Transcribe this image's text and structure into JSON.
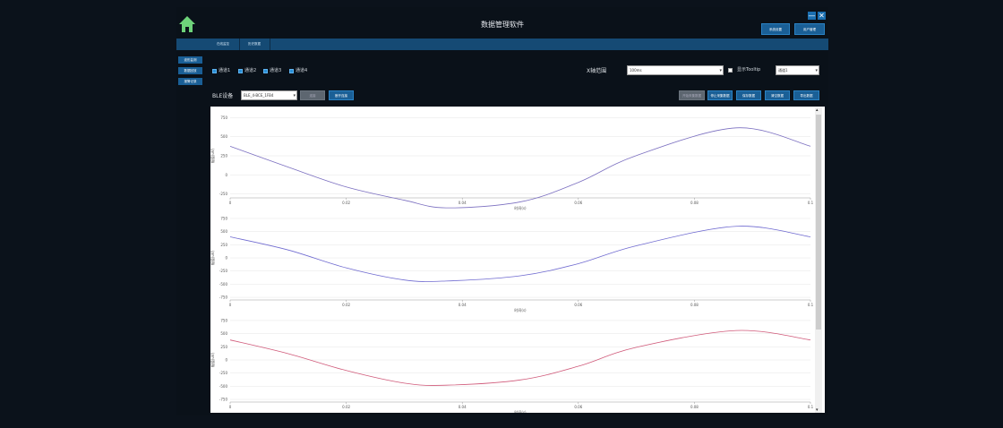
{
  "app": {
    "title": "数据管理软件",
    "home_icon": "home-icon",
    "minimize_label": "—",
    "close_label": "✕",
    "top_buttons": [
      "系统设置",
      "用户管理"
    ]
  },
  "tabs": [
    {
      "label": "在线监控"
    },
    {
      "label": "历史数据"
    }
  ],
  "sidebar": {
    "items": [
      {
        "label": "波形监测"
      },
      {
        "label": "数据回放"
      },
      {
        "label": "报警记录"
      }
    ]
  },
  "channels": [
    {
      "label": "通道1",
      "checked": true
    },
    {
      "label": "通道2",
      "checked": true
    },
    {
      "label": "通道3",
      "checked": true
    },
    {
      "label": "通道4",
      "checked": true
    }
  ],
  "xaxis_range": {
    "label": "X轴范围",
    "value": "100ms"
  },
  "tooltip_toggle": {
    "label": "显示Tooltip",
    "checked": false,
    "channel_value": "通道1"
  },
  "device": {
    "label": "BLE设备",
    "value": "BLE_4-BCE_1FB4",
    "connect_label": "连接",
    "disconnect_label": "断开连接"
  },
  "toolbar": {
    "buttons": [
      {
        "label": "开始采集数据",
        "disabled": true
      },
      {
        "label": "停止采集数据",
        "disabled": false
      },
      {
        "label": "保存数据",
        "disabled": false
      },
      {
        "label": "清空数据",
        "disabled": false
      },
      {
        "label": "导出数据",
        "disabled": false
      }
    ]
  },
  "chart_data": [
    {
      "type": "line",
      "xlabel": "时间(s)",
      "ylabel": "幅值(uV)",
      "xlim": [
        0,
        0.1
      ],
      "ylim": [
        -300,
        800
      ],
      "x_ticks": [
        "0",
        "0.02",
        "0.04",
        "0.06",
        "0.08",
        "0.1"
      ],
      "y_ticks": [
        "750",
        "500",
        "250",
        "0",
        "-250"
      ],
      "color": "#7b6fc0",
      "series": [
        {
          "x": [
            0,
            0.01,
            0.02,
            0.03,
            0.0372,
            0.05,
            0.06,
            0.07,
            0.0872,
            0.1
          ],
          "values": [
            375,
            102,
            -157,
            -330,
            -430,
            -352,
            -98,
            253,
            615,
            375
          ]
        }
      ]
    },
    {
      "type": "line",
      "xlabel": "时间(s)",
      "ylabel": "幅值(uV)",
      "xlim": [
        0,
        0.1
      ],
      "ylim": [
        -800,
        800
      ],
      "x_ticks": [
        "0",
        "0.02",
        "0.04",
        "0.06",
        "0.08",
        "0.1"
      ],
      "y_ticks": [
        "750",
        "500",
        "250",
        "0",
        "-250",
        "-500",
        "-750"
      ],
      "color": "#6f6ad0",
      "series": [
        {
          "x": [
            0,
            0.01,
            0.02,
            0.03,
            0.0372,
            0.05,
            0.06,
            0.07,
            0.0872,
            0.1
          ],
          "values": [
            400,
            150,
            -190,
            -420,
            -440,
            -340,
            -110,
            230,
            600,
            400
          ]
        }
      ]
    },
    {
      "type": "line",
      "xlabel": "时间(s)",
      "ylabel": "幅值(uV)",
      "xlim": [
        0,
        0.1
      ],
      "ylim": [
        -800,
        800
      ],
      "x_ticks": [
        "0",
        "0.02",
        "0.04",
        "0.06",
        "0.08",
        "0.1"
      ],
      "y_ticks": [
        "750",
        "500",
        "250",
        "0",
        "-250",
        "-500",
        "-750"
      ],
      "color": "#d05a7a",
      "series": [
        {
          "x": [
            0,
            0.01,
            0.02,
            0.03,
            0.0372,
            0.05,
            0.06,
            0.07,
            0.0872,
            0.1
          ],
          "values": [
            380,
            120,
            -200,
            -440,
            -480,
            -380,
            -120,
            240,
            560,
            380
          ]
        }
      ]
    }
  ]
}
